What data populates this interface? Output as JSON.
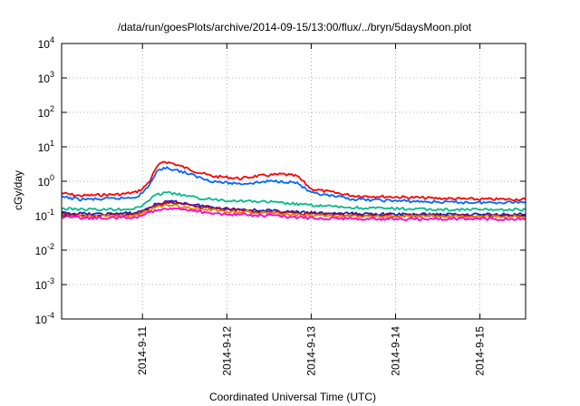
{
  "chart_data": {
    "type": "line",
    "title": "/data/run/goesPlots/archive/2014-09-15/13:00/flux/../bryn/5daysMoon.plot",
    "xlabel": "Coordinated Universal Time (UTC)",
    "ylabel": "cGy/day",
    "yscale": "log",
    "ylim": [
      0.0001,
      10000
    ],
    "xlim": [
      "2014-09-10 01:00",
      "2014-09-15 13:00"
    ],
    "grid": true,
    "x_ticks": [
      {
        "value": "2014-09-11 00:00",
        "label": "2014-9-11"
      },
      {
        "value": "2014-09-12 00:00",
        "label": "2014-9-12"
      },
      {
        "value": "2014-09-13 00:00",
        "label": "2014-9-13"
      },
      {
        "value": "2014-09-14 00:00",
        "label": "2014-9-14"
      },
      {
        "value": "2014-09-15 00:00",
        "label": "2014-9-15"
      }
    ],
    "y_ticks": [
      {
        "value": 0.0001,
        "base": "10",
        "exp": "-4"
      },
      {
        "value": 0.001,
        "base": "10",
        "exp": "-3"
      },
      {
        "value": 0.01,
        "base": "10",
        "exp": "-2"
      },
      {
        "value": 0.1,
        "base": "10",
        "exp": "-1"
      },
      {
        "value": 1,
        "base": "10",
        "exp": "0"
      },
      {
        "value": 10,
        "base": "10",
        "exp": "1"
      },
      {
        "value": 100,
        "base": "10",
        "exp": "2"
      },
      {
        "value": 1000,
        "base": "10",
        "exp": "3"
      },
      {
        "value": 10000,
        "base": "10",
        "exp": "4"
      }
    ],
    "series": [
      {
        "color": "#ff0000",
        "x": [
          "2014-09-10 01:00",
          "2014-09-10 06:00",
          "2014-09-10 12:00",
          "2014-09-10 18:00",
          "2014-09-10 22:00",
          "2014-09-11 00:00",
          "2014-09-11 02:00",
          "2014-09-11 04:00",
          "2014-09-11 06:00",
          "2014-09-11 09:00",
          "2014-09-11 12:00",
          "2014-09-11 16:00",
          "2014-09-11 20:00",
          "2014-09-12 00:00",
          "2014-09-12 04:00",
          "2014-09-12 08:00",
          "2014-09-12 12:00",
          "2014-09-12 16:00",
          "2014-09-12 20:00",
          "2014-09-13 00:00",
          "2014-09-13 12:00",
          "2014-09-14 00:00",
          "2014-09-14 12:00",
          "2014-09-15 00:00",
          "2014-09-15 13:00"
        ],
        "values": [
          0.45,
          0.38,
          0.4,
          0.42,
          0.48,
          0.6,
          1.0,
          2.5,
          3.8,
          3.2,
          2.5,
          1.8,
          1.4,
          1.3,
          1.2,
          1.4,
          1.5,
          1.6,
          1.4,
          0.6,
          0.38,
          0.35,
          0.32,
          0.3,
          0.3
        ]
      },
      {
        "color": "#0066ff",
        "x": [
          "2014-09-10 01:00",
          "2014-09-10 06:00",
          "2014-09-10 12:00",
          "2014-09-10 18:00",
          "2014-09-10 22:00",
          "2014-09-11 00:00",
          "2014-09-11 02:00",
          "2014-09-11 04:00",
          "2014-09-11 06:00",
          "2014-09-11 09:00",
          "2014-09-11 12:00",
          "2014-09-11 16:00",
          "2014-09-11 20:00",
          "2014-09-12 00:00",
          "2014-09-12 04:00",
          "2014-09-12 08:00",
          "2014-09-12 12:00",
          "2014-09-12 16:00",
          "2014-09-12 20:00",
          "2014-09-13 00:00",
          "2014-09-13 12:00",
          "2014-09-14 00:00",
          "2014-09-14 12:00",
          "2014-09-15 00:00",
          "2014-09-15 13:00"
        ],
        "values": [
          0.35,
          0.3,
          0.3,
          0.32,
          0.35,
          0.45,
          0.8,
          1.8,
          2.5,
          2.2,
          1.8,
          1.3,
          1.0,
          0.9,
          0.85,
          0.9,
          1.0,
          1.0,
          0.9,
          0.45,
          0.3,
          0.27,
          0.25,
          0.24,
          0.25
        ]
      },
      {
        "color": "#00bb88",
        "x": [
          "2014-09-10 01:00",
          "2014-09-10 12:00",
          "2014-09-10 22:00",
          "2014-09-11 00:00",
          "2014-09-11 03:00",
          "2014-09-11 06:00",
          "2014-09-11 10:00",
          "2014-09-11 16:00",
          "2014-09-12 00:00",
          "2014-09-12 12:00",
          "2014-09-13 00:00",
          "2014-09-13 12:00",
          "2014-09-14 00:00",
          "2014-09-14 12:00",
          "2014-09-15 00:00",
          "2014-09-15 13:00"
        ],
        "values": [
          0.16,
          0.15,
          0.16,
          0.2,
          0.35,
          0.48,
          0.42,
          0.32,
          0.28,
          0.25,
          0.2,
          0.17,
          0.16,
          0.15,
          0.15,
          0.15
        ]
      },
      {
        "color": "#2222aa",
        "x": [
          "2014-09-10 01:00",
          "2014-09-10 12:00",
          "2014-09-10 22:00",
          "2014-09-11 00:00",
          "2014-09-11 04:00",
          "2014-09-11 08:00",
          "2014-09-11 16:00",
          "2014-09-12 00:00",
          "2014-09-12 12:00",
          "2014-09-13 00:00",
          "2014-09-14 00:00",
          "2014-09-15 00:00",
          "2014-09-15 13:00"
        ],
        "values": [
          0.12,
          0.11,
          0.12,
          0.14,
          0.22,
          0.26,
          0.2,
          0.16,
          0.14,
          0.12,
          0.11,
          0.11,
          0.11
        ]
      },
      {
        "color": "#aa0044",
        "x": [
          "2014-09-10 01:00",
          "2014-09-10 12:00",
          "2014-09-10 22:00",
          "2014-09-11 00:00",
          "2014-09-11 04:00",
          "2014-09-11 08:00",
          "2014-09-11 16:00",
          "2014-09-12 00:00",
          "2014-09-12 12:00",
          "2014-09-13 00:00",
          "2014-09-14 00:00",
          "2014-09-15 00:00",
          "2014-09-15 13:00"
        ],
        "values": [
          0.11,
          0.1,
          0.11,
          0.13,
          0.2,
          0.24,
          0.18,
          0.15,
          0.13,
          0.11,
          0.1,
          0.1,
          0.1
        ]
      },
      {
        "color": "#dd8800",
        "x": [
          "2014-09-10 01:00",
          "2014-09-10 12:00",
          "2014-09-10 22:00",
          "2014-09-11 00:00",
          "2014-09-11 04:00",
          "2014-09-11 08:00",
          "2014-09-11 16:00",
          "2014-09-12 00:00",
          "2014-09-12 12:00",
          "2014-09-13 00:00",
          "2014-09-14 00:00",
          "2014-09-15 00:00",
          "2014-09-15 13:00"
        ],
        "values": [
          0.1,
          0.095,
          0.1,
          0.12,
          0.18,
          0.2,
          0.16,
          0.13,
          0.12,
          0.1,
          0.095,
          0.095,
          0.095
        ]
      },
      {
        "color": "#ff00cc",
        "x": [
          "2014-09-10 01:00",
          "2014-09-10 12:00",
          "2014-09-10 22:00",
          "2014-09-11 00:00",
          "2014-09-11 04:00",
          "2014-09-11 08:00",
          "2014-09-11 16:00",
          "2014-09-12 00:00",
          "2014-09-12 12:00",
          "2014-09-13 00:00",
          "2014-09-14 00:00",
          "2014-09-15 00:00",
          "2014-09-15 13:00"
        ],
        "values": [
          0.09,
          0.085,
          0.09,
          0.1,
          0.15,
          0.17,
          0.13,
          0.11,
          0.1,
          0.085,
          0.08,
          0.08,
          0.08
        ]
      }
    ]
  }
}
